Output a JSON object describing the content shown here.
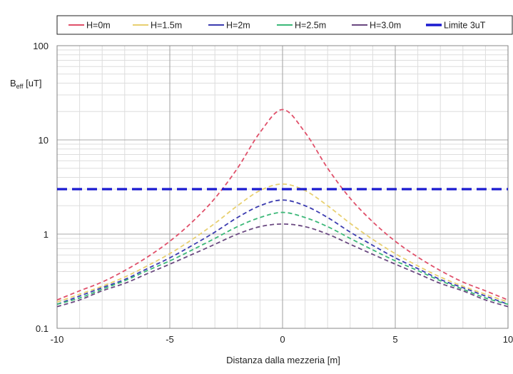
{
  "chart_data": {
    "type": "line",
    "title": "",
    "xlabel": "Distanza dalla mezzeria [m]",
    "ylabel_main": "B",
    "ylabel_sub": "eff",
    "ylabel_unit": " [uT]",
    "xlim": [
      -10,
      10
    ],
    "ylim": [
      0.1,
      100
    ],
    "yscale": "log",
    "grid": true,
    "legend_position": "top",
    "x_ticks": [
      -10,
      -5,
      0,
      5,
      10
    ],
    "x_tick_labels": [
      "-10",
      "-5",
      "0",
      "5",
      "10"
    ],
    "y_ticks": [
      0.1,
      1,
      10,
      100
    ],
    "y_tick_labels": [
      "0.1",
      "1",
      "10",
      "100"
    ],
    "x": [
      -10,
      -9,
      -8,
      -7,
      -6,
      -5,
      -4,
      -3,
      -2,
      -1,
      0,
      1,
      2,
      3,
      4,
      5,
      6,
      7,
      8,
      9,
      10
    ],
    "series": [
      {
        "name": "H=0m",
        "color": "#e0506a",
        "dashed": true,
        "values": [
          0.2,
          0.25,
          0.31,
          0.41,
          0.57,
          0.84,
          1.35,
          2.4,
          5.0,
          12.0,
          21.0,
          12.0,
          5.0,
          2.4,
          1.35,
          0.84,
          0.57,
          0.41,
          0.31,
          0.25,
          0.2
        ]
      },
      {
        "name": "H=1.5m",
        "color": "#e8d070",
        "dashed": true,
        "values": [
          0.19,
          0.23,
          0.28,
          0.35,
          0.46,
          0.62,
          0.88,
          1.3,
          2.0,
          2.9,
          3.4,
          2.9,
          2.0,
          1.3,
          0.88,
          0.62,
          0.46,
          0.35,
          0.28,
          0.23,
          0.19
        ]
      },
      {
        "name": "H=2m",
        "color": "#3c3cb0",
        "dashed": true,
        "values": [
          0.18,
          0.22,
          0.27,
          0.33,
          0.43,
          0.56,
          0.76,
          1.05,
          1.5,
          2.0,
          2.3,
          2.0,
          1.5,
          1.05,
          0.76,
          0.56,
          0.43,
          0.33,
          0.27,
          0.22,
          0.18
        ]
      },
      {
        "name": "H=2.5m",
        "color": "#3cb878",
        "dashed": true,
        "values": [
          0.18,
          0.21,
          0.26,
          0.32,
          0.41,
          0.52,
          0.68,
          0.9,
          1.2,
          1.5,
          1.7,
          1.5,
          1.2,
          0.9,
          0.68,
          0.52,
          0.41,
          0.32,
          0.26,
          0.21,
          0.18
        ]
      },
      {
        "name": "H=3.0m",
        "color": "#6a4880",
        "dashed": true,
        "values": [
          0.17,
          0.2,
          0.25,
          0.3,
          0.38,
          0.48,
          0.61,
          0.78,
          1.0,
          1.2,
          1.28,
          1.2,
          1.0,
          0.78,
          0.61,
          0.48,
          0.38,
          0.3,
          0.25,
          0.2,
          0.17
        ]
      },
      {
        "name": "Limite 3uT",
        "color": "#1a1ad0",
        "dashed": true,
        "thick": true,
        "values": [
          3,
          3,
          3,
          3,
          3,
          3,
          3,
          3,
          3,
          3,
          3,
          3,
          3,
          3,
          3,
          3,
          3,
          3,
          3,
          3,
          3
        ]
      }
    ]
  }
}
